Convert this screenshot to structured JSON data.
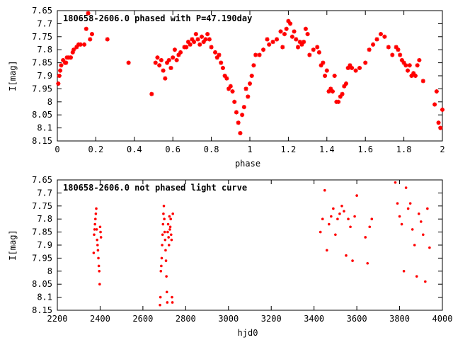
{
  "chart_data": [
    {
      "type": "scatter",
      "title": "180658-2606.0 phased with P=47.190day",
      "xlabel": "phase",
      "ylabel": "I[mag]",
      "xlim": [
        0,
        2
      ],
      "ylim": [
        8.15,
        7.65
      ],
      "y_inverted": true,
      "grid": false,
      "marker_color": "#ff0000",
      "marker": "star",
      "xticks": [
        "0",
        "0.2",
        "0.4",
        "0.6",
        "0.8",
        "1",
        "1.2",
        "1.4",
        "1.6",
        "1.8",
        "2"
      ],
      "yticks": [
        "7.65",
        "7.7",
        "7.75",
        "7.8",
        "7.85",
        "7.9",
        "7.95",
        "8",
        "8.05",
        "8.1",
        "8.15"
      ],
      "x": [
        0.005,
        0.01,
        0.015,
        0.02,
        0.03,
        0.04,
        0.045,
        0.05,
        0.06,
        0.07,
        0.08,
        0.085,
        0.1,
        0.11,
        0.12,
        0.14,
        0.15,
        0.16,
        0.17,
        0.18,
        0.26,
        0.37,
        0.49,
        0.51,
        0.52,
        0.53,
        0.54,
        0.55,
        0.56,
        0.57,
        0.58,
        0.59,
        0.6,
        0.61,
        0.62,
        0.63,
        0.64,
        0.66,
        0.67,
        0.68,
        0.69,
        0.7,
        0.71,
        0.72,
        0.73,
        0.74,
        0.75,
        0.76,
        0.77,
        0.78,
        0.79,
        0.8,
        0.82,
        0.83,
        0.84,
        0.85,
        0.86,
        0.87,
        0.88,
        0.89,
        0.9,
        0.91,
        0.92,
        0.93,
        0.94,
        0.95,
        0.96,
        0.97,
        0.98,
        0.99,
        1.0,
        1.01,
        1.02,
        1.03,
        1.05,
        1.07,
        1.09,
        1.1,
        1.12,
        1.14,
        1.16,
        1.17,
        1.18,
        1.19,
        1.2,
        1.21,
        1.22,
        1.23,
        1.24,
        1.25,
        1.26,
        1.27,
        1.28,
        1.29,
        1.3,
        1.31,
        1.33,
        1.35,
        1.36,
        1.37,
        1.38,
        1.39,
        1.4,
        1.41,
        1.42,
        1.43,
        1.44,
        1.45,
        1.46,
        1.47,
        1.48,
        1.49,
        1.5,
        1.51,
        1.52,
        1.53,
        1.55,
        1.57,
        1.6,
        1.62,
        1.64,
        1.66,
        1.68,
        1.7,
        1.72,
        1.74,
        1.76,
        1.77,
        1.78,
        1.79,
        1.8,
        1.81,
        1.82,
        1.83,
        1.84,
        1.85,
        1.86,
        1.87,
        1.88,
        1.9,
        1.96,
        1.97,
        1.98,
        1.99,
        2.0
      ],
      "y": [
        7.93,
        7.9,
        7.88,
        7.86,
        7.84,
        7.85,
        7.85,
        7.83,
        7.83,
        7.83,
        7.81,
        7.8,
        7.79,
        7.78,
        7.78,
        7.78,
        7.72,
        7.66,
        7.76,
        7.74,
        7.76,
        7.85,
        7.97,
        7.85,
        7.83,
        7.86,
        7.84,
        7.88,
        7.91,
        7.85,
        7.84,
        7.87,
        7.83,
        7.8,
        7.84,
        7.82,
        7.81,
        7.79,
        7.79,
        7.77,
        7.78,
        7.76,
        7.77,
        7.74,
        7.76,
        7.78,
        7.75,
        7.77,
        7.76,
        7.74,
        7.76,
        7.79,
        7.81,
        7.83,
        7.82,
        7.85,
        7.87,
        7.9,
        7.91,
        7.95,
        7.94,
        7.96,
        8.0,
        8.04,
        8.08,
        8.12,
        8.05,
        8.02,
        7.95,
        7.98,
        7.93,
        7.9,
        7.86,
        7.82,
        7.82,
        7.8,
        7.76,
        7.78,
        7.77,
        7.76,
        7.73,
        7.79,
        7.74,
        7.72,
        7.69,
        7.7,
        7.75,
        7.73,
        7.76,
        7.79,
        7.77,
        7.78,
        7.77,
        7.72,
        7.74,
        7.82,
        7.8,
        7.79,
        7.81,
        7.86,
        7.85,
        7.9,
        7.88,
        7.96,
        7.95,
        7.96,
        7.9,
        8.0,
        8.0,
        7.98,
        7.97,
        7.94,
        7.93,
        7.87,
        7.86,
        7.87,
        7.88,
        7.87,
        7.85,
        7.8,
        7.78,
        7.76,
        7.74,
        7.75,
        7.79,
        7.82,
        7.79,
        7.8,
        7.82,
        7.84,
        7.85,
        7.86,
        7.88,
        7.86,
        7.9,
        7.89,
        7.9,
        7.86,
        7.84,
        7.92,
        8.01,
        7.96,
        8.08,
        8.1,
        8.03
      ]
    },
    {
      "type": "scatter",
      "title": "180658-2606.0 not phased light curve",
      "xlabel": "hjd0",
      "ylabel": "I[mag]",
      "xlim": [
        2200,
        4000
      ],
      "ylim": [
        8.15,
        7.65
      ],
      "y_inverted": true,
      "grid": false,
      "marker_color": "#ff0000",
      "marker": "dot",
      "xticks": [
        "2200",
        "2400",
        "2600",
        "2800",
        "3000",
        "3200",
        "3400",
        "3600",
        "3800",
        "4000"
      ],
      "yticks": [
        "7.65",
        "7.7",
        "7.75",
        "7.8",
        "7.85",
        "7.9",
        "7.95",
        "8",
        "8.05",
        "8.1",
        "8.15"
      ],
      "x": [
        2370,
        2372,
        2374,
        2376,
        2378,
        2380,
        2382,
        2384,
        2386,
        2388,
        2390,
        2392,
        2394,
        2396,
        2398,
        2400,
        2402,
        2404,
        2680,
        2682,
        2684,
        2686,
        2688,
        2690,
        2692,
        2694,
        2696,
        2698,
        2700,
        2702,
        2704,
        2706,
        2708,
        2710,
        2712,
        2714,
        2716,
        2718,
        2720,
        2722,
        2724,
        2726,
        2728,
        2730,
        2732,
        2734,
        2736,
        2738,
        2740,
        3430,
        3440,
        3450,
        3460,
        3470,
        3480,
        3490,
        3500,
        3510,
        3520,
        3530,
        3540,
        3550,
        3560,
        3570,
        3580,
        3590,
        3600,
        3640,
        3650,
        3660,
        3670,
        3780,
        3790,
        3800,
        3810,
        3820,
        3830,
        3840,
        3850,
        3860,
        3870,
        3880,
        3890,
        3900,
        3910,
        3920,
        3930,
        3940
      ],
      "y": [
        7.93,
        7.86,
        7.84,
        7.82,
        7.8,
        7.78,
        7.76,
        7.84,
        7.88,
        7.9,
        7.92,
        7.95,
        7.98,
        8.0,
        8.05,
        7.83,
        7.85,
        7.87,
        8.13,
        8.1,
        8.0,
        7.98,
        7.95,
        7.9,
        7.86,
        7.82,
        7.78,
        7.75,
        7.8,
        7.85,
        7.88,
        7.92,
        7.96,
        8.02,
        8.08,
        8.12,
        7.85,
        7.82,
        7.87,
        7.9,
        7.79,
        7.84,
        7.83,
        7.8,
        7.86,
        7.88,
        8.1,
        8.12,
        7.78,
        7.85,
        7.8,
        7.69,
        7.92,
        7.82,
        7.79,
        7.76,
        7.86,
        7.8,
        7.78,
        7.75,
        7.77,
        7.94,
        7.8,
        7.83,
        7.96,
        7.79,
        7.71,
        7.87,
        7.97,
        7.83,
        7.8,
        7.66,
        7.74,
        7.79,
        7.82,
        8.0,
        7.68,
        7.76,
        7.74,
        7.84,
        7.9,
        8.02,
        7.78,
        7.81,
        7.86,
        8.04,
        7.76,
        7.91
      ]
    }
  ]
}
